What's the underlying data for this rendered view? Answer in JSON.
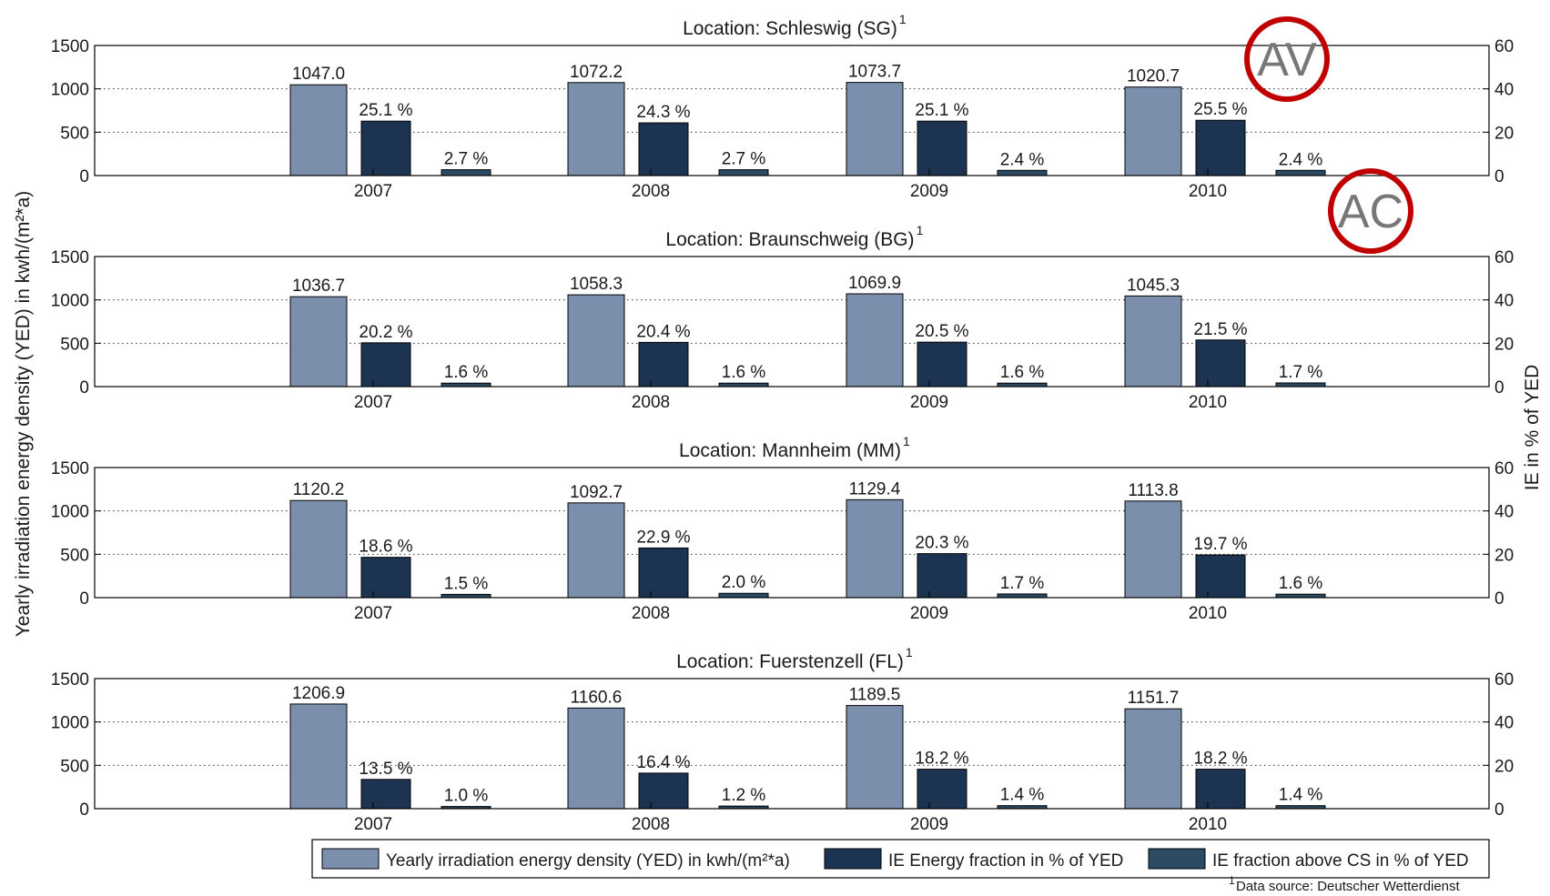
{
  "chart_data": {
    "type": "bar",
    "categories": [
      "2007",
      "2008",
      "2009",
      "2010"
    ],
    "ylabel_left": "Yearly irradiation energy density (YED) in kwh/(m²*a)",
    "ylabel_right": "IE in % of YED",
    "ylim_left": [
      0,
      1500
    ],
    "ylim_right": [
      0,
      60
    ],
    "yticks_left": [
      "0",
      "500",
      "1000",
      "1500"
    ],
    "yticks_right": [
      "0",
      "20",
      "40",
      "60"
    ],
    "grid": "dotted horizontal",
    "colors": {
      "yed": "#7b8fad",
      "ie": "#1c3352",
      "cs": "#2b4a63"
    },
    "panels": [
      {
        "title": "Location: Schleswig (SG)",
        "superscript": "1",
        "series": [
          {
            "name": "Yearly irradiation energy density (YED) in kwh/(m²*a)",
            "axis": "left",
            "values": [
              1047.0,
              1072.2,
              1073.7,
              1020.7
            ],
            "labels": [
              "1047.0",
              "1072.2",
              "1073.7",
              "1020.7"
            ]
          },
          {
            "name": "IE Energy fraction in % of YED",
            "axis": "right",
            "values": [
              25.1,
              24.3,
              25.1,
              25.5
            ],
            "labels": [
              "25.1 %",
              "24.3 %",
              "25.1 %",
              "25.5 %"
            ]
          },
          {
            "name": "IE fraction above CS in % of YED",
            "axis": "right",
            "values": [
              2.7,
              2.7,
              2.4,
              2.4
            ],
            "labels": [
              "2.7 %",
              "2.7 %",
              "2.4 %",
              "2.4 %"
            ]
          }
        ]
      },
      {
        "title": "Location: Braunschweig (BG)",
        "superscript": "1",
        "series": [
          {
            "name": "Yearly irradiation energy density (YED) in kwh/(m²*a)",
            "axis": "left",
            "values": [
              1036.7,
              1058.3,
              1069.9,
              1045.3
            ],
            "labels": [
              "1036.7",
              "1058.3",
              "1069.9",
              "1045.3"
            ]
          },
          {
            "name": "IE Energy fraction in % of YED",
            "axis": "right",
            "values": [
              20.2,
              20.4,
              20.5,
              21.5
            ],
            "labels": [
              "20.2 %",
              "20.4 %",
              "20.5 %",
              "21.5 %"
            ]
          },
          {
            "name": "IE fraction above CS in % of YED",
            "axis": "right",
            "values": [
              1.6,
              1.6,
              1.6,
              1.7
            ],
            "labels": [
              "1.6 %",
              "1.6 %",
              "1.6 %",
              "1.7 %"
            ]
          }
        ]
      },
      {
        "title": "Location: Mannheim (MM)",
        "superscript": "1",
        "series": [
          {
            "name": "Yearly irradiation energy density (YED) in kwh/(m²*a)",
            "axis": "left",
            "values": [
              1120.2,
              1092.7,
              1129.4,
              1113.8
            ],
            "labels": [
              "1120.2",
              "1092.7",
              "1129.4",
              "1113.8"
            ]
          },
          {
            "name": "IE Energy fraction in % of YED",
            "axis": "right",
            "values": [
              18.6,
              22.9,
              20.3,
              19.7
            ],
            "labels": [
              "18.6 %",
              "22.9 %",
              "20.3 %",
              "19.7 %"
            ]
          },
          {
            "name": "IE fraction above CS in % of YED",
            "axis": "right",
            "values": [
              1.5,
              2.0,
              1.7,
              1.6
            ],
            "labels": [
              "1.5 %",
              "2.0 %",
              "1.7 %",
              "1.6 %"
            ]
          }
        ]
      },
      {
        "title": "Location: Fuerstenzell (FL)",
        "superscript": "1",
        "series": [
          {
            "name": "Yearly irradiation energy density (YED) in kwh/(m²*a)",
            "axis": "left",
            "values": [
              1206.9,
              1160.6,
              1189.5,
              1151.7
            ],
            "labels": [
              "1206.9",
              "1160.6",
              "1189.5",
              "1151.7"
            ]
          },
          {
            "name": "IE Energy fraction in % of YED",
            "axis": "right",
            "values": [
              13.5,
              16.4,
              18.2,
              18.2
            ],
            "labels": [
              "13.5 %",
              "16.4 %",
              "18.2 %",
              "18.2 %"
            ]
          },
          {
            "name": "IE fraction above CS in % of YED",
            "axis": "right",
            "values": [
              1.0,
              1.2,
              1.4,
              1.4
            ],
            "labels": [
              "1.0 %",
              "1.2 %",
              "1.4 %",
              "1.4 %"
            ]
          }
        ]
      }
    ],
    "legend": {
      "placement": "bottom-right",
      "entries": [
        "Yearly irradiation energy density (YED) in kwh/(m²*a)",
        "IE Energy fraction in % of YED",
        "IE fraction above CS in % of YED"
      ]
    },
    "footnote": {
      "marker": "1",
      "text": "Data source: Deutscher Wetterdienst"
    },
    "annotations": [
      {
        "text": "AV",
        "color": "#c00000",
        "panel": 0
      },
      {
        "text": "AC",
        "color": "#c00000",
        "panel": 0
      }
    ]
  }
}
